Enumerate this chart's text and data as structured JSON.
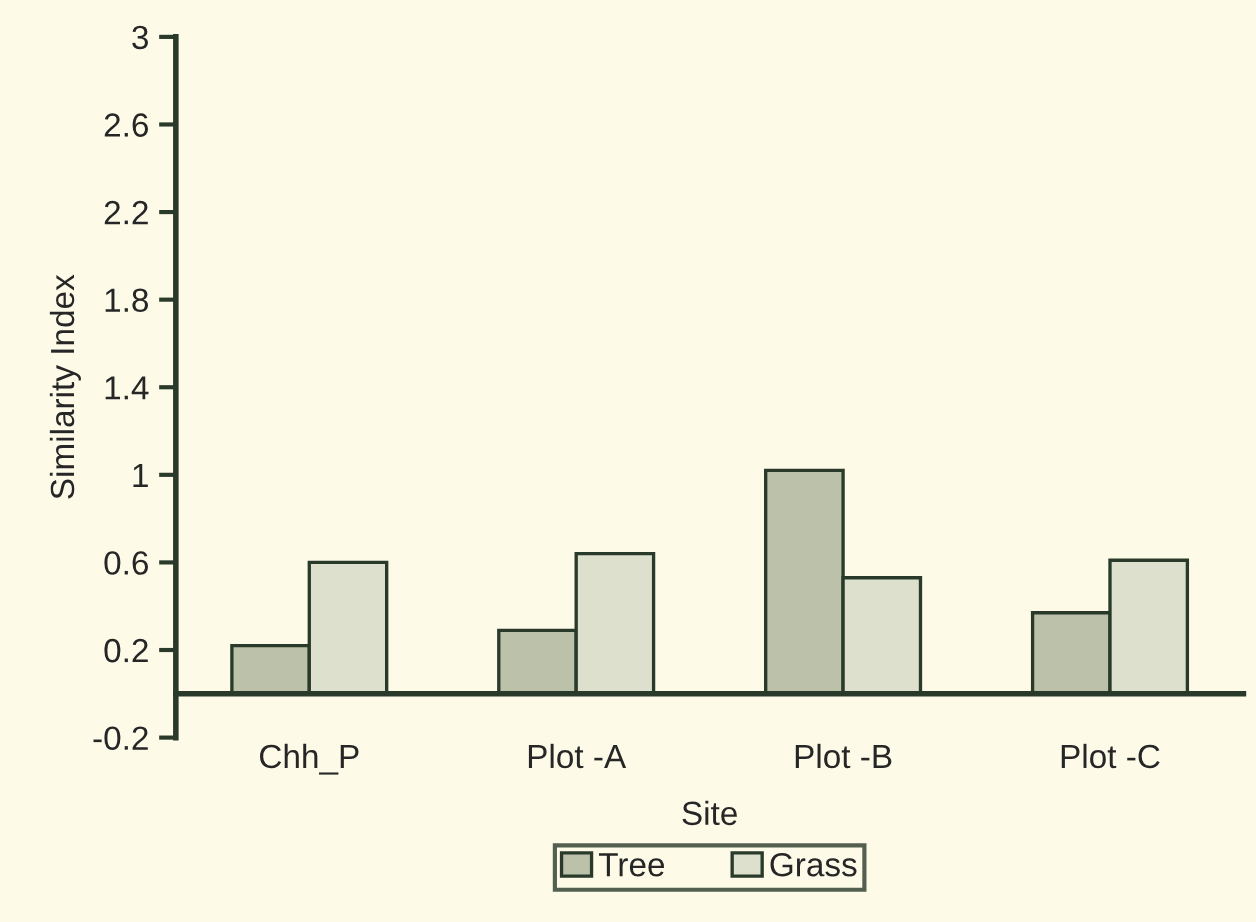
{
  "chart_data": {
    "type": "bar",
    "xlabel": "Site",
    "ylabel": "Similarity Index",
    "categories": [
      "Chh_P",
      "Plot -A",
      "Plot -B",
      "Plot -C"
    ],
    "series": [
      {
        "name": "Tree",
        "color": "#bcc2aa",
        "values": [
          0.22,
          0.29,
          1.02,
          0.37
        ]
      },
      {
        "name": "Grass",
        "color": "#dde0cc",
        "values": [
          0.6,
          0.64,
          0.53,
          0.61
        ]
      }
    ],
    "ylim": [
      -0.2,
      3
    ],
    "yticks": [
      -0.2,
      0.2,
      0.6,
      1,
      1.4,
      1.8,
      2.2,
      2.6,
      3
    ],
    "grid": false,
    "legend": "bottom"
  }
}
